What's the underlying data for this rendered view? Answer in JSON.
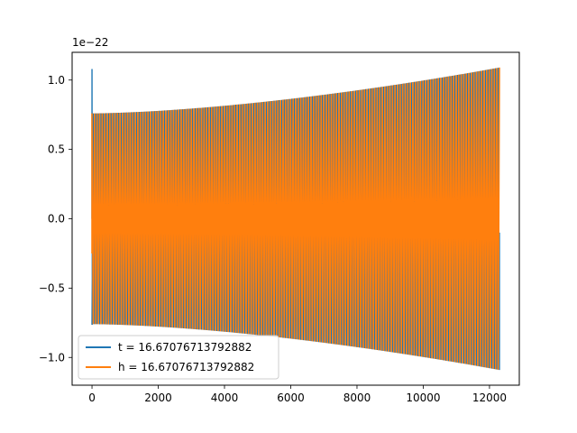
{
  "chart_data": {
    "type": "line",
    "title": "",
    "xlabel": "",
    "ylabel": "",
    "y_offset_label": "1e−22",
    "xlim": [
      -600,
      12900
    ],
    "ylim": [
      -1.2,
      1.2
    ],
    "x_ticks": [
      0,
      2000,
      4000,
      6000,
      8000,
      10000,
      12000
    ],
    "x_tick_labels": [
      "0",
      "2000",
      "4000",
      "6000",
      "8000",
      "10000",
      "12000"
    ],
    "y_ticks": [
      -1.0,
      -0.5,
      0.0,
      0.5,
      1.0
    ],
    "y_tick_labels": [
      "−1.0",
      "−0.5",
      "0.0",
      "0.5",
      "1.0"
    ],
    "grid": false,
    "legend_position": "lower-left",
    "waveform": {
      "x_start": 0,
      "x_end": 12300,
      "initial_spike": 1.08,
      "amplitude_start": 0.76,
      "amplitude_end": 1.09,
      "cycles": 160
    },
    "series": [
      {
        "name": "t = 16.67076713792882",
        "color": "#1f77b4"
      },
      {
        "name": "h = 16.67076713792882",
        "color": "#ff7f0e"
      }
    ]
  }
}
